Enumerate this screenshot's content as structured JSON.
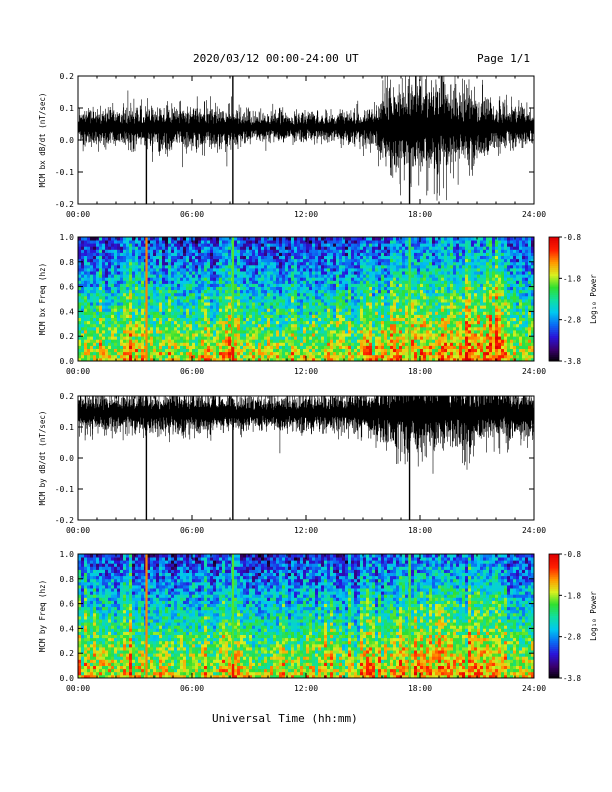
{
  "header": {
    "title": "2020/03/12  00:00-24:00 UT",
    "page": "Page 1/1"
  },
  "xlabel": "Universal Time (hh:mm)",
  "colors": {
    "trace": "#000000",
    "colormap": [
      "#000000",
      "#3a006e",
      "#2a14d8",
      "#0a6cf4",
      "#00c8f0",
      "#10e0a0",
      "#30e030",
      "#d8f020",
      "#ff9a00",
      "#ff2000",
      "#e00000"
    ]
  },
  "chart_data": [
    {
      "type": "line",
      "ylabel": "MCM bx dB/dt (nT/sec)",
      "xlim": [
        0,
        24
      ],
      "ylim": [
        -0.2,
        0.2
      ],
      "yticks": [
        "-0.2",
        "-0.1",
        "0.0",
        "0.1",
        "0.2"
      ],
      "xticks": [
        "00:00",
        "06:00",
        "12:00",
        "18:00",
        "24:00"
      ],
      "baseline": 0.04,
      "noise_profile": [
        [
          0,
          0.018
        ],
        [
          2.5,
          0.022
        ],
        [
          3.5,
          0.02
        ],
        [
          5.5,
          0.025
        ],
        [
          8,
          0.02
        ],
        [
          11,
          0.015
        ],
        [
          14,
          0.016
        ],
        [
          15.5,
          0.02
        ],
        [
          16.5,
          0.045
        ],
        [
          17.5,
          0.05
        ],
        [
          19,
          0.055
        ],
        [
          20.5,
          0.04
        ],
        [
          22,
          0.025
        ],
        [
          24,
          0.018
        ]
      ],
      "spikes": [
        {
          "t": 3.6,
          "min": -0.2,
          "max": 0.05
        },
        {
          "t": 8.15,
          "min": -0.2,
          "max": 0.2
        },
        {
          "t": 17.45,
          "min": -0.2,
          "max": 0.08
        }
      ]
    },
    {
      "type": "heatmap",
      "ylabel": "MCM bx Freq (hz)",
      "colorbar_label": "Log₁₀ Power",
      "xlim": [
        0,
        24
      ],
      "ylim": [
        0,
        1.0
      ],
      "yticks": [
        "0.0",
        "0.2",
        "0.4",
        "0.6",
        "0.8",
        "1.0"
      ],
      "xticks": [
        "00:00",
        "06:00",
        "12:00",
        "18:00",
        "24:00"
      ],
      "zlim": [
        -3.8,
        -0.8
      ],
      "colorbar_ticks": [
        "-0.8",
        "-1.8",
        "-2.8",
        "-3.8"
      ],
      "bright_times": [
        3.6,
        8.15,
        17.45
      ],
      "active_bands": [
        [
          2.3,
          2.8
        ],
        [
          7.5,
          8.5
        ],
        [
          14.8,
          15.4
        ],
        [
          16.5,
          22.5
        ]
      ]
    },
    {
      "type": "line",
      "ylabel": "MCM by dB/dt (nT/sec)",
      "xlim": [
        0,
        24
      ],
      "ylim": [
        -0.2,
        0.2
      ],
      "yticks": [
        "-0.2",
        "-0.1",
        "0.0",
        "0.1",
        "0.2"
      ],
      "xticks": [
        "00:00",
        "06:00",
        "12:00",
        "18:00",
        "24:00"
      ],
      "baseline": 0.145,
      "noise_profile": [
        [
          0,
          0.02
        ],
        [
          3,
          0.022
        ],
        [
          5,
          0.025
        ],
        [
          8,
          0.02
        ],
        [
          11,
          0.018
        ],
        [
          14,
          0.022
        ],
        [
          16,
          0.03
        ],
        [
          17.5,
          0.045
        ],
        [
          19,
          0.05
        ],
        [
          20.5,
          0.04
        ],
        [
          22,
          0.03
        ],
        [
          24,
          0.025
        ]
      ],
      "spikes": [
        {
          "t": 3.6,
          "min": -0.2,
          "max": 0.2
        },
        {
          "t": 8.15,
          "min": -0.2,
          "max": 0.15
        },
        {
          "t": 17.45,
          "min": -0.2,
          "max": 0.15
        }
      ]
    },
    {
      "type": "heatmap",
      "ylabel": "MCM by Freq (hz)",
      "colorbar_label": "Log₁₀ Power",
      "xlim": [
        0,
        24
      ],
      "ylim": [
        0,
        1.0
      ],
      "yticks": [
        "0.0",
        "0.2",
        "0.4",
        "0.6",
        "0.8",
        "1.0"
      ],
      "xticks": [
        "00:00",
        "06:00",
        "12:00",
        "18:00",
        "24:00"
      ],
      "zlim": [
        -3.8,
        -0.8
      ],
      "colorbar_ticks": [
        "-0.8",
        "-1.8",
        "-2.8",
        "-3.8"
      ],
      "bright_times": [
        3.6,
        8.15,
        17.45
      ],
      "active_bands": [
        [
          2.3,
          2.8
        ],
        [
          7.5,
          8.5
        ],
        [
          14.8,
          15.4
        ],
        [
          16.5,
          22.5
        ]
      ]
    }
  ]
}
